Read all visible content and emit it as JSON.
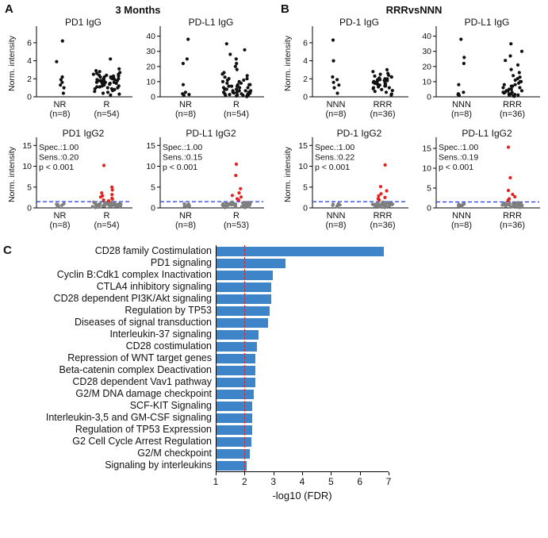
{
  "panels": {
    "a": {
      "label": "A",
      "title": "3 Months"
    },
    "b": {
      "label": "B",
      "title": "RRRvsNNN"
    },
    "c": {
      "label": "C"
    }
  },
  "colors": {
    "dot_black": "#111111",
    "dot_gray": "#7f7f7f",
    "dot_red": "#e0231e",
    "threshold_blue": "#2337d4",
    "bar_blue": "#3d85c8",
    "bar_threshold_red": "#e0231e"
  },
  "chart_data": [
    {
      "panel": "a",
      "row": "top",
      "type": "strip",
      "title": "PD1 IgG",
      "ylabel": "Norm. intensity",
      "ylim": [
        0,
        7.4
      ],
      "yticks": [
        0,
        2,
        4,
        6
      ],
      "groups": [
        {
          "name": "NR",
          "n": "(n=8)",
          "values": [
            6.2,
            3.9,
            2.2,
            1.9,
            1.6,
            1.3,
            1.0,
            0.4
          ]
        },
        {
          "name": "R",
          "n": "(n=54)",
          "values": [
            4.2,
            3.1,
            2.9,
            2.8,
            2.7,
            2.6,
            2.5,
            2.5,
            2.4,
            2.4,
            2.3,
            2.3,
            2.2,
            2.2,
            2.2,
            2.1,
            2.1,
            2.0,
            2.0,
            2.0,
            1.9,
            1.9,
            1.9,
            1.8,
            1.8,
            1.8,
            1.7,
            1.7,
            1.7,
            1.6,
            1.6,
            1.6,
            1.5,
            1.5,
            1.5,
            1.4,
            1.4,
            1.3,
            1.3,
            1.2,
            1.2,
            1.1,
            1.1,
            1.0,
            1.0,
            0.9,
            0.9,
            0.8,
            0.7,
            0.6,
            0.5,
            0.4,
            0.3,
            0.2
          ]
        }
      ]
    },
    {
      "panel": "a",
      "row": "top",
      "type": "strip",
      "title": "PD-L1 IgG",
      "ylabel": null,
      "ylim": [
        0,
        44
      ],
      "yticks": [
        0,
        10,
        20,
        30,
        40
      ],
      "groups": [
        {
          "name": "NR",
          "n": "(n=8)",
          "values": [
            38,
            25,
            22,
            8,
            3,
            2,
            1.5,
            1
          ]
        },
        {
          "name": "R",
          "n": "(n=54)",
          "values": [
            35,
            31,
            28,
            25,
            22,
            20,
            18,
            16,
            15,
            14,
            13,
            12,
            12,
            11,
            11,
            10,
            10,
            9,
            9,
            8,
            8,
            8,
            7,
            7,
            7,
            6,
            6,
            6,
            5,
            5,
            5,
            5,
            4,
            4,
            4,
            4,
            3,
            3,
            3,
            3,
            2.5,
            2.5,
            2,
            2,
            2,
            1.5,
            1.5,
            1.2,
            1,
            1,
            0.8,
            0.6,
            0.4,
            0.2
          ]
        }
      ]
    },
    {
      "panel": "a",
      "row": "bottom",
      "type": "strip",
      "title": "PD1 IgG2",
      "ylabel": "Norm. intensity",
      "ylim": [
        0,
        16
      ],
      "yticks": [
        0,
        5,
        10,
        15
      ],
      "threshold": 1.5,
      "stats": [
        "Spec.:1.00",
        "Sens.:0.20",
        "p < 0.001"
      ],
      "groups": [
        {
          "name": "NR",
          "n": "(n=8)",
          "values": [
            1.0,
            0.9,
            0.8,
            0.7,
            0.6,
            0.5,
            0.4,
            0.3
          ],
          "red": []
        },
        {
          "name": "R",
          "n": "(n=54)",
          "values": [
            1.4,
            1.3,
            1.3,
            1.2,
            1.2,
            1.2,
            1.1,
            1.1,
            1.1,
            1.0,
            1.0,
            1.0,
            1.0,
            0.9,
            0.9,
            0.9,
            0.9,
            0.8,
            0.8,
            0.8,
            0.8,
            0.7,
            0.7,
            0.7,
            0.7,
            0.6,
            0.6,
            0.6,
            0.6,
            0.5,
            0.5,
            0.5,
            0.5,
            0.4,
            0.4,
            0.4,
            0.3,
            0.3,
            0.3,
            0.2,
            0.2,
            0.2,
            0.1
          ],
          "red": [
            10.2,
            5.0,
            4.3,
            3.6,
            3.2,
            2.9,
            2.6,
            2.3,
            2.1,
            1.9,
            1.7
          ]
        }
      ]
    },
    {
      "panel": "a",
      "row": "bottom",
      "type": "strip",
      "title": "PD-L1 IgG2",
      "ylabel": null,
      "ylim": [
        0,
        16
      ],
      "yticks": [
        0,
        5,
        10,
        15
      ],
      "threshold": 1.5,
      "stats": [
        "Spec.:1.00",
        "Sens.:0.15",
        "p < 0.001"
      ],
      "groups": [
        {
          "name": "NR",
          "n": "(n=8)",
          "values": [
            1.0,
            0.9,
            0.8,
            0.7,
            0.6,
            0.5,
            0.4,
            0.3
          ],
          "red": []
        },
        {
          "name": "R",
          "n": "(n=53)",
          "values": [
            1.4,
            1.3,
            1.3,
            1.2,
            1.2,
            1.2,
            1.1,
            1.1,
            1.1,
            1.0,
            1.0,
            1.0,
            1.0,
            0.9,
            0.9,
            0.9,
            0.9,
            0.8,
            0.8,
            0.8,
            0.8,
            0.7,
            0.7,
            0.7,
            0.7,
            0.6,
            0.6,
            0.6,
            0.6,
            0.5,
            0.5,
            0.5,
            0.5,
            0.4,
            0.4,
            0.4,
            0.4,
            0.3,
            0.3,
            0.3,
            0.2,
            0.2,
            0.2,
            0.1,
            0.1
          ],
          "red": [
            10.5,
            7.8,
            4.6,
            3.6,
            3.0,
            2.6,
            2.2,
            1.9
          ]
        }
      ]
    },
    {
      "panel": "b",
      "row": "top",
      "type": "strip",
      "title": "PD-1 IgG",
      "ylabel": "Norm. intensity",
      "ylim": [
        0,
        7.4
      ],
      "yticks": [
        0,
        2,
        4,
        6
      ],
      "groups": [
        {
          "name": "NNN",
          "n": "(n=8)",
          "values": [
            6.3,
            4.0,
            2.2,
            1.9,
            1.6,
            1.3,
            1.0,
            0.4
          ]
        },
        {
          "name": "RRR",
          "n": "(n=36)",
          "values": [
            3.0,
            2.8,
            2.6,
            2.5,
            2.4,
            2.3,
            2.2,
            2.2,
            2.1,
            2.0,
            2.0,
            1.9,
            1.9,
            1.8,
            1.8,
            1.7,
            1.7,
            1.6,
            1.6,
            1.5,
            1.5,
            1.4,
            1.4,
            1.3,
            1.2,
            1.2,
            1.1,
            1.0,
            1.0,
            0.9,
            0.8,
            0.7,
            0.6,
            0.5,
            0.3,
            0.2
          ]
        }
      ]
    },
    {
      "panel": "b",
      "row": "top",
      "type": "strip",
      "title": "PD-L1 IgG",
      "ylabel": null,
      "ylim": [
        0,
        44
      ],
      "yticks": [
        0,
        10,
        20,
        30,
        40
      ],
      "groups": [
        {
          "name": "NNN",
          "n": "(n=8)",
          "values": [
            38,
            26,
            22,
            8,
            3,
            2,
            1.5,
            1
          ]
        },
        {
          "name": "RRR",
          "n": "(n=36)",
          "values": [
            35,
            30,
            27,
            24,
            21,
            18,
            16,
            14,
            13,
            12,
            11,
            10,
            10,
            9,
            8,
            8,
            7,
            7,
            6,
            6,
            5,
            5,
            4,
            4,
            4,
            3,
            3,
            3,
            2.5,
            2,
            2,
            1.5,
            1.2,
            1,
            0.6,
            0.3
          ]
        }
      ]
    },
    {
      "panel": "b",
      "row": "bottom",
      "type": "strip",
      "title": "PD-1 IgG2",
      "ylabel": "Norm. intensity",
      "ylim": [
        0,
        16
      ],
      "yticks": [
        0,
        5,
        10,
        15
      ],
      "threshold": 1.5,
      "stats": [
        "Spec.:1.00",
        "Sens.:0.22",
        "p < 0.001"
      ],
      "groups": [
        {
          "name": "NNN",
          "n": "(n=8)",
          "values": [
            1.0,
            0.9,
            0.8,
            0.7,
            0.6,
            0.5,
            0.4,
            0.3
          ],
          "red": []
        },
        {
          "name": "RRR",
          "n": "(n=36)",
          "values": [
            1.4,
            1.3,
            1.2,
            1.2,
            1.1,
            1.1,
            1.0,
            1.0,
            1.0,
            0.9,
            0.9,
            0.9,
            0.8,
            0.8,
            0.8,
            0.7,
            0.7,
            0.7,
            0.6,
            0.6,
            0.6,
            0.5,
            0.5,
            0.4,
            0.4,
            0.3,
            0.2,
            0.1
          ],
          "red": [
            10.3,
            5.1,
            4.1,
            3.4,
            2.9,
            2.5,
            2.2,
            1.9
          ]
        }
      ]
    },
    {
      "panel": "b",
      "row": "bottom",
      "type": "strip",
      "title": "PD-L1 IgG2",
      "ylabel": null,
      "ylim": [
        0,
        16.8
      ],
      "yticks": [
        0,
        5,
        10,
        15
      ],
      "threshold": 1.5,
      "stats": [
        "Spec.:1.00",
        "Sens.:0.19",
        "p < 0.001"
      ],
      "groups": [
        {
          "name": "NNN",
          "n": "(n=8)",
          "values": [
            1.0,
            0.9,
            0.8,
            0.7,
            0.6,
            0.5,
            0.4,
            0.3
          ],
          "red": []
        },
        {
          "name": "RRR",
          "n": "(n=36)",
          "values": [
            1.4,
            1.3,
            1.2,
            1.2,
            1.1,
            1.1,
            1.0,
            1.0,
            1.0,
            0.9,
            0.9,
            0.9,
            0.8,
            0.8,
            0.8,
            0.7,
            0.7,
            0.7,
            0.6,
            0.6,
            0.6,
            0.5,
            0.5,
            0.4,
            0.4,
            0.3,
            0.3,
            0.2,
            0.1
          ],
          "red": [
            15.3,
            7.6,
            4.4,
            3.4,
            2.8,
            2.3,
            1.9
          ]
        }
      ]
    },
    {
      "panel": "c",
      "type": "bar",
      "categories": [
        "CD28 family Costimulation",
        "PD1 signaling",
        "Cyclin B:Cdk1 complex Inactivation",
        "CTLA4 inhibitory signaling",
        "CD28 dependent PI3K/Akt signaling",
        "Regulation by TP53",
        "Diseases of signal transduction",
        "Interleukin-37 signaling",
        "CD28 costimulation",
        "Repression of WNT target genes",
        "Beta-catenin complex Deactivation",
        "CD28 dependent Vav1 pathway",
        "G2/M DNA damage checkpoint",
        "SCF-KIT Signaling",
        "Interleukin-3,5 and GM-CSF signaling",
        "Regulation of TP53 Expression",
        "G2 Cell Cycle Arrest Regulation",
        "G2/M checkpoint",
        "Signaling by interleukins"
      ],
      "values": [
        6.8,
        3.4,
        2.95,
        2.9,
        2.9,
        2.85,
        2.8,
        2.45,
        2.4,
        2.35,
        2.35,
        2.35,
        2.3,
        2.25,
        2.25,
        2.25,
        2.2,
        2.15,
        2.05
      ],
      "xlabel": "-log10 (FDR)",
      "xticks": [
        1,
        2,
        3,
        4,
        5,
        6,
        7
      ],
      "xlim": [
        1,
        7
      ],
      "threshold": 2
    }
  ]
}
